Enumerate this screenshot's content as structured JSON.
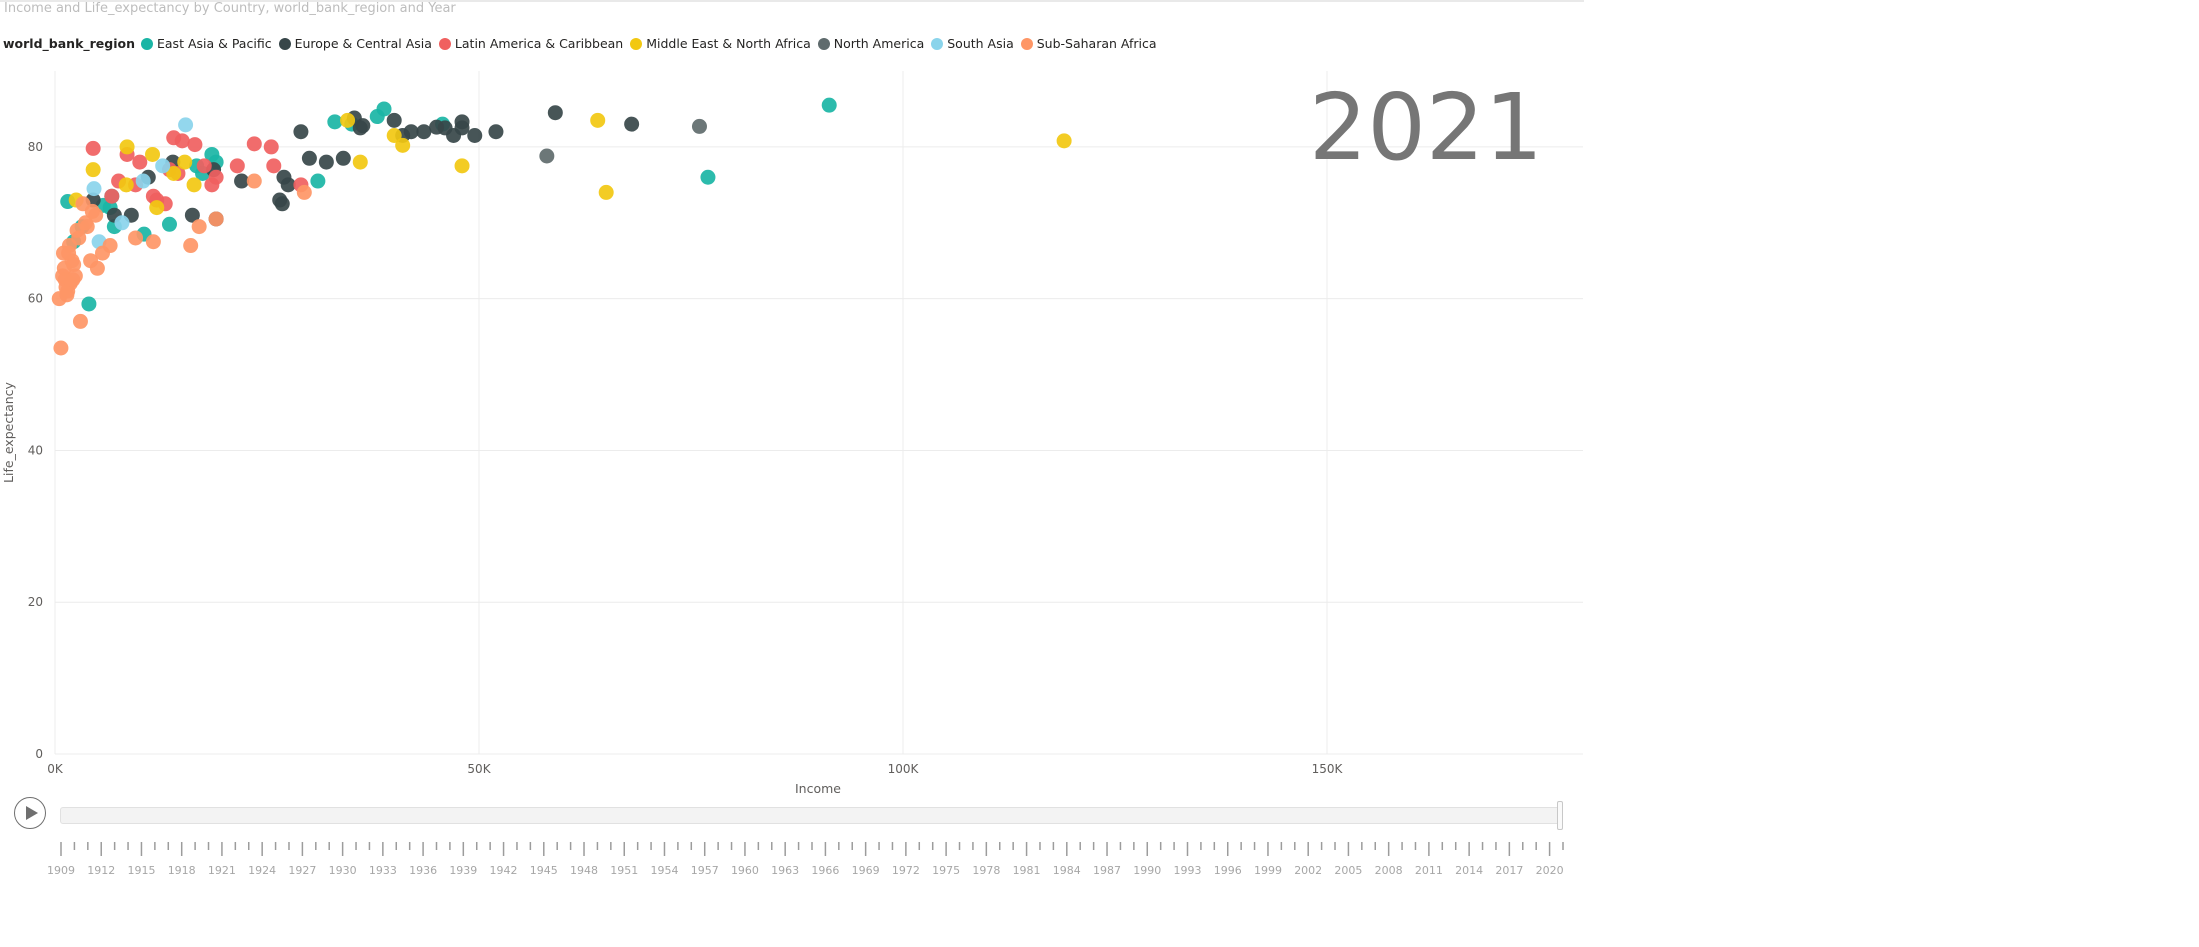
{
  "title": "Income and Life_expectancy by Country, world_bank_region and Year",
  "legend": {
    "title": "world_bank_region",
    "items": [
      {
        "label": "East Asia & Pacific",
        "color": "#1ab5a5"
      },
      {
        "label": "Europe & Central Asia",
        "color": "#374649"
      },
      {
        "label": "Latin America & Caribbean",
        "color": "#f0605f"
      },
      {
        "label": "Middle East & North Africa",
        "color": "#f2c811"
      },
      {
        "label": "North America",
        "color": "#5f6b6d"
      },
      {
        "label": "South Asia",
        "color": "#8ad4eb"
      },
      {
        "label": "Sub-Saharan Africa",
        "color": "#fe9666"
      }
    ]
  },
  "current_year": "2021",
  "play_button_icon": "play-icon",
  "timeline": {
    "start_year": 1909,
    "end_year": 2021,
    "labels": [
      "1909",
      "1912",
      "1915",
      "1918",
      "1921",
      "1924",
      "1927",
      "1930",
      "1933",
      "1936",
      "1939",
      "1942",
      "1945",
      "1948",
      "1951",
      "1954",
      "1957",
      "1960",
      "1963",
      "1966",
      "1969",
      "1972",
      "1975",
      "1978",
      "1981",
      "1984",
      "1987",
      "1990",
      "1993",
      "1996",
      "1999",
      "2002",
      "2005",
      "2008",
      "2011",
      "2014",
      "2017",
      "2020"
    ],
    "selected_year": 2021
  },
  "chart_data": {
    "type": "scatter",
    "title": "Income and Life_expectancy by Country, world_bank_region and Year",
    "xlabel": "Income",
    "ylabel": "Life_expectancy",
    "xlim": [
      0,
      180000
    ],
    "ylim": [
      0,
      90
    ],
    "x_ticks": [
      0,
      50000,
      100000,
      150000
    ],
    "x_tick_labels": [
      "0K",
      "50K",
      "100K",
      "150K"
    ],
    "y_ticks": [
      0,
      20,
      40,
      60,
      80
    ],
    "y_tick_labels": [
      "0",
      "20",
      "40",
      "60",
      "80"
    ],
    "grid": true,
    "legend_position": "top-left",
    "series": [
      {
        "name": "East Asia & Pacific",
        "color": "#1ab5a5",
        "x": [
          91300,
          38800,
          35000,
          77000,
          45700,
          18500,
          1500,
          3200,
          5700,
          6700,
          10500,
          13500,
          31000,
          7000,
          4000,
          19000,
          17400,
          2200,
          33000,
          16700,
          6500,
          38000
        ],
        "y": [
          85.5,
          85.0,
          83.0,
          76.0,
          83.0,
          79.0,
          72.8,
          69.5,
          72.3,
          73.5,
          68.5,
          69.8,
          75.5,
          69.5,
          59.3,
          78.0,
          76.5,
          67.5,
          83.3,
          77.5,
          72.0,
          84.0
        ]
      },
      {
        "name": "Europe & Central Asia",
        "color": "#374649",
        "x": [
          68000,
          59000,
          52000,
          48000,
          46000,
          42000,
          43500,
          49500,
          47000,
          41000,
          40000,
          36000,
          35300,
          34000,
          32000,
          30000,
          27000,
          29000,
          27500,
          22000,
          26500,
          26800,
          19000,
          18700,
          16200,
          13900,
          9000,
          7000,
          11000,
          4500,
          36300,
          48000,
          45000
        ],
        "y": [
          83.0,
          84.5,
          82.0,
          82.5,
          82.5,
          82.0,
          82.0,
          81.5,
          81.5,
          81.5,
          83.5,
          82.5,
          83.8,
          78.5,
          78.0,
          78.5,
          76.0,
          82.0,
          75.0,
          75.5,
          73.0,
          72.5,
          70.5,
          77.0,
          71.0,
          78.0,
          71.0,
          71.0,
          76.0,
          73.0,
          82.8,
          83.3,
          82.6
        ]
      },
      {
        "name": "Latin America & Caribbean",
        "color": "#f0605f",
        "x": [
          4500,
          8500,
          14000,
          15000,
          16500,
          23500,
          25500,
          25800,
          29000,
          13500,
          12000,
          10000,
          7500,
          17600,
          14500,
          19000,
          21500,
          18500,
          11600,
          13000,
          6700,
          9500
        ],
        "y": [
          79.8,
          79.0,
          81.2,
          80.8,
          80.3,
          80.4,
          80.0,
          77.5,
          75.0,
          77.0,
          73.0,
          78.0,
          75.5,
          77.5,
          76.5,
          76.0,
          77.5,
          75.0,
          73.5,
          72.5,
          73.5,
          75.0
        ]
      },
      {
        "name": "Middle East & North Africa",
        "color": "#f2c811",
        "x": [
          119000,
          64000,
          65000,
          48000,
          41000,
          36000,
          34500,
          40000,
          8500,
          11500,
          15300,
          12000,
          16400,
          4500,
          2500,
          8400,
          14000
        ],
        "y": [
          80.8,
          83.5,
          74.0,
          77.5,
          80.2,
          78.0,
          83.5,
          81.5,
          80.0,
          79.0,
          78.0,
          72.0,
          75.0,
          77.0,
          73.0,
          75.0,
          76.5
        ]
      },
      {
        "name": "North America",
        "color": "#5f6b6d",
        "x": [
          76000,
          58000
        ],
        "y": [
          82.7,
          78.8
        ]
      },
      {
        "name": "South Asia",
        "color": "#8ad4eb",
        "x": [
          15400,
          4600,
          10400,
          7900,
          5200,
          12700
        ],
        "y": [
          82.9,
          74.5,
          75.5,
          70.0,
          67.5,
          77.5
        ]
      },
      {
        "name": "Sub-Saharan Africa",
        "color": "#fe9666",
        "x": [
          700,
          3000,
          1400,
          1800,
          2400,
          1100,
          500,
          2000,
          1600,
          1300,
          2800,
          3600,
          4200,
          5000,
          5600,
          900,
          2600,
          1700,
          1200,
          2200,
          3300,
          4800,
          6500,
          9500,
          11600,
          16000,
          17000,
          19000,
          23500,
          29400,
          1000,
          1500,
          2100,
          3800,
          4400
        ],
        "y": [
          53.5,
          57.0,
          60.5,
          62.0,
          63.0,
          64.0,
          60.0,
          65.0,
          66.0,
          61.5,
          68.0,
          70.0,
          65.0,
          64.0,
          66.0,
          63.0,
          69.0,
          67.0,
          62.5,
          64.5,
          72.5,
          71.0,
          67.0,
          68.0,
          67.5,
          67.0,
          69.5,
          70.5,
          75.5,
          74.0,
          66.0,
          61.0,
          62.5,
          69.5,
          71.5
        ]
      }
    ]
  }
}
